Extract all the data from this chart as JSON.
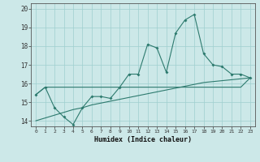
{
  "xlabel": "Humidex (Indice chaleur)",
  "x_values": [
    0,
    1,
    2,
    3,
    4,
    5,
    6,
    7,
    8,
    9,
    10,
    11,
    12,
    13,
    14,
    15,
    16,
    17,
    18,
    19,
    20,
    21,
    22,
    23
  ],
  "line1_y": [
    15.4,
    15.8,
    14.7,
    14.2,
    13.8,
    14.7,
    15.3,
    15.3,
    15.2,
    15.8,
    16.5,
    16.5,
    18.1,
    17.9,
    16.6,
    18.7,
    19.4,
    19.7,
    17.6,
    17.0,
    16.9,
    16.5,
    16.5,
    16.3
  ],
  "line2_y": [
    15.4,
    15.8,
    15.8,
    15.8,
    15.8,
    15.8,
    15.8,
    15.8,
    15.8,
    15.8,
    15.8,
    15.8,
    15.8,
    15.8,
    15.8,
    15.8,
    15.8,
    15.8,
    15.8,
    15.8,
    15.8,
    15.8,
    15.8,
    16.3
  ],
  "line3_y": [
    14.0,
    14.15,
    14.3,
    14.45,
    14.6,
    14.7,
    14.85,
    14.95,
    15.05,
    15.15,
    15.25,
    15.35,
    15.45,
    15.55,
    15.65,
    15.75,
    15.85,
    15.95,
    16.05,
    16.1,
    16.15,
    16.2,
    16.25,
    16.3
  ],
  "line_color": "#2d7a6e",
  "bg_color": "#cce8e8",
  "grid_color": "#9fcfcf",
  "ylim": [
    13.7,
    20.3
  ],
  "xlim": [
    -0.5,
    23.5
  ],
  "yticks": [
    14,
    15,
    16,
    17,
    18,
    19,
    20
  ],
  "xticks": [
    0,
    1,
    2,
    3,
    4,
    5,
    6,
    7,
    8,
    9,
    10,
    11,
    12,
    13,
    14,
    15,
    16,
    17,
    18,
    19,
    20,
    21,
    22,
    23
  ]
}
